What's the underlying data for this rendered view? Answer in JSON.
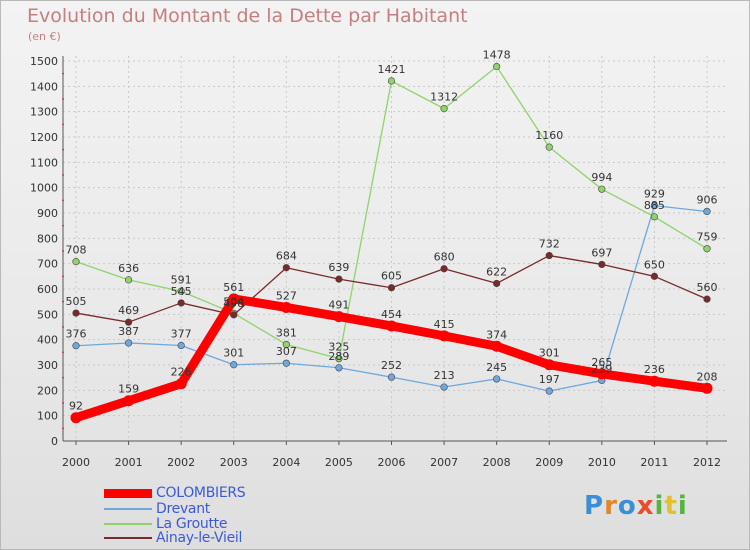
{
  "title": "Evolution du Montant de la Dette par Habitant",
  "unit_label": "(en €)",
  "logo": "Proxiti",
  "chart_data": {
    "type": "line",
    "title": "Evolution du Montant de la Dette par Habitant",
    "ylabel": "(en €)",
    "xlabel": "",
    "x": [
      "2000",
      "2001",
      "2002",
      "2003",
      "2004",
      "2005",
      "2006",
      "2007",
      "2008",
      "2009",
      "2010",
      "2011",
      "2012"
    ],
    "ylim": [
      0,
      1500
    ],
    "yticks": [
      0,
      100,
      200,
      300,
      400,
      500,
      600,
      700,
      800,
      900,
      1000,
      1100,
      1200,
      1300,
      1400,
      1500
    ],
    "grid": true,
    "legend_position": "bottom-left",
    "series": [
      {
        "name": "COLOMBIERS",
        "color": "#ff0000",
        "values": [
          92,
          159,
          226,
          561,
          527,
          491,
          454,
          415,
          374,
          301,
          265,
          236,
          208
        ]
      },
      {
        "name": "Drevant",
        "color": "#6fa8dc",
        "values": [
          376,
          387,
          377,
          301,
          307,
          289,
          252,
          213,
          245,
          197,
          239,
          929,
          906
        ]
      },
      {
        "name": "La Groutte",
        "color": "#8fd36a",
        "values": [
          708,
          636,
          591,
          504,
          381,
          325,
          1421,
          1312,
          1478,
          1160,
          994,
          885,
          759
        ]
      },
      {
        "name": "Ainay-le-Vieil",
        "color": "#7a2a2a",
        "values": [
          505,
          469,
          545,
          498,
          684,
          639,
          605,
          680,
          622,
          732,
          697,
          650,
          560
        ]
      }
    ],
    "point_labels": [
      {
        "series": 0,
        "labels": [
          "92",
          "159",
          "226",
          "561",
          "527",
          "491",
          "454",
          "415",
          "374",
          "301",
          "265",
          "236",
          "208"
        ]
      },
      {
        "series": 1,
        "labels": [
          "376",
          "387",
          "377",
          "301",
          "307",
          "289",
          "252",
          "213",
          "245",
          "197",
          "239",
          "929",
          "906"
        ]
      },
      {
        "series": 2,
        "labels": [
          "708",
          "636",
          "591",
          "504",
          "381",
          "325",
          "1421",
          "1312",
          "1478",
          "1160",
          "994",
          "885",
          "759"
        ]
      },
      {
        "series": 3,
        "labels": [
          "505",
          "469",
          "545",
          "498",
          "684",
          "639",
          "605",
          "680",
          "622",
          "732",
          "697",
          "650",
          "560"
        ]
      }
    ]
  }
}
